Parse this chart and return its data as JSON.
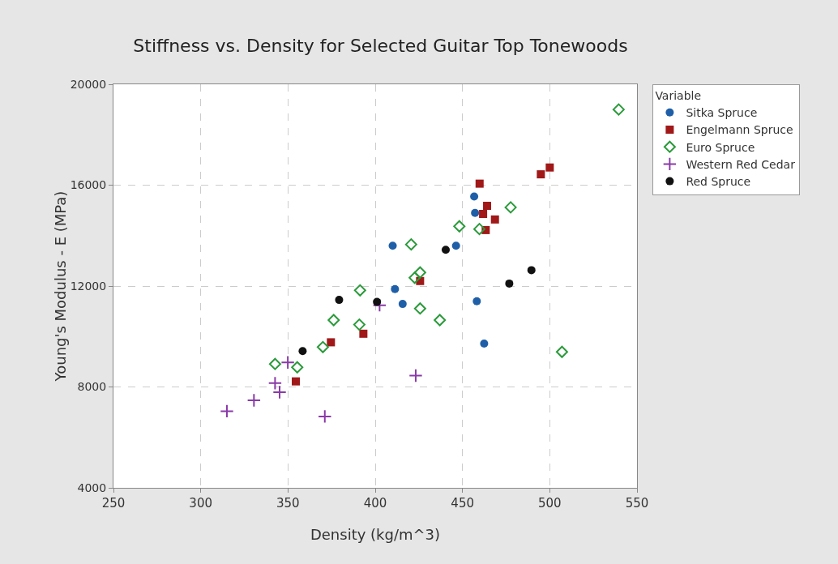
{
  "chart_data": {
    "type": "scatter",
    "title": "Stiffness vs. Density for Selected Guitar Top Tonewoods",
    "xlabel": "Density (kg/m^3)",
    "ylabel": "Young's Modulus - E (MPa)",
    "legend_title": "Variable",
    "xlim": [
      250,
      550
    ],
    "ylim": [
      4000,
      20000
    ],
    "xticks": [
      250,
      300,
      350,
      400,
      450,
      500,
      550
    ],
    "yticks": [
      4000,
      8000,
      12000,
      16000,
      20000
    ],
    "grid": true,
    "legend": "right",
    "series": [
      {
        "name": "Sitka Spruce",
        "color": "#1f5fa8",
        "marker": "circle",
        "x": [
          410,
          411.3,
          415.7,
          446.3,
          456.7,
          457.2,
          458.2,
          462.4
        ],
        "values": [
          13600,
          11880,
          11290,
          13600,
          15550,
          14900,
          11400,
          9720
        ]
      },
      {
        "name": "Engelmann Spruce",
        "color": "#a01818",
        "marker": "square",
        "x": [
          459.8,
          464.1,
          461.8,
          468.6,
          463.3,
          425.7,
          393.2,
          374.6,
          354.5,
          494.9,
          500
        ],
        "values": [
          16060,
          15180,
          14860,
          14640,
          14220,
          12200,
          10110,
          9770,
          8220,
          16430,
          16700
        ]
      },
      {
        "name": "Euro Spruce",
        "color": "#2a9a3a",
        "marker": "diamond",
        "x": [
          539.5,
          507,
          477.6,
          448.2,
          420.6,
          425.7,
          422.6,
          425.7,
          437,
          391.3,
          390.9,
          376.2,
          370,
          342.6,
          355.3,
          459.7
        ],
        "values": [
          19000,
          9390,
          15120,
          14370,
          13650,
          12540,
          12330,
          11110,
          10650,
          11830,
          10470,
          10650,
          9580,
          8910,
          8780,
          14260
        ]
      },
      {
        "name": "Western Red Cedar",
        "color": "#8a3aa8",
        "marker": "cross",
        "x": [
          315,
          330.5,
          342.6,
          345.2,
          349.9,
          371.1,
          402.5,
          423.2
        ],
        "values": [
          7040,
          7470,
          8150,
          7790,
          8970,
          6830,
          11240,
          8450
        ]
      },
      {
        "name": "Red Spruce",
        "color": "#111111",
        "marker": "circle",
        "x": [
          358.4,
          379.3,
          401,
          440.4,
          476.8,
          489.5
        ],
        "values": [
          9420,
          11450,
          11370,
          13440,
          12100,
          12630
        ]
      }
    ]
  }
}
